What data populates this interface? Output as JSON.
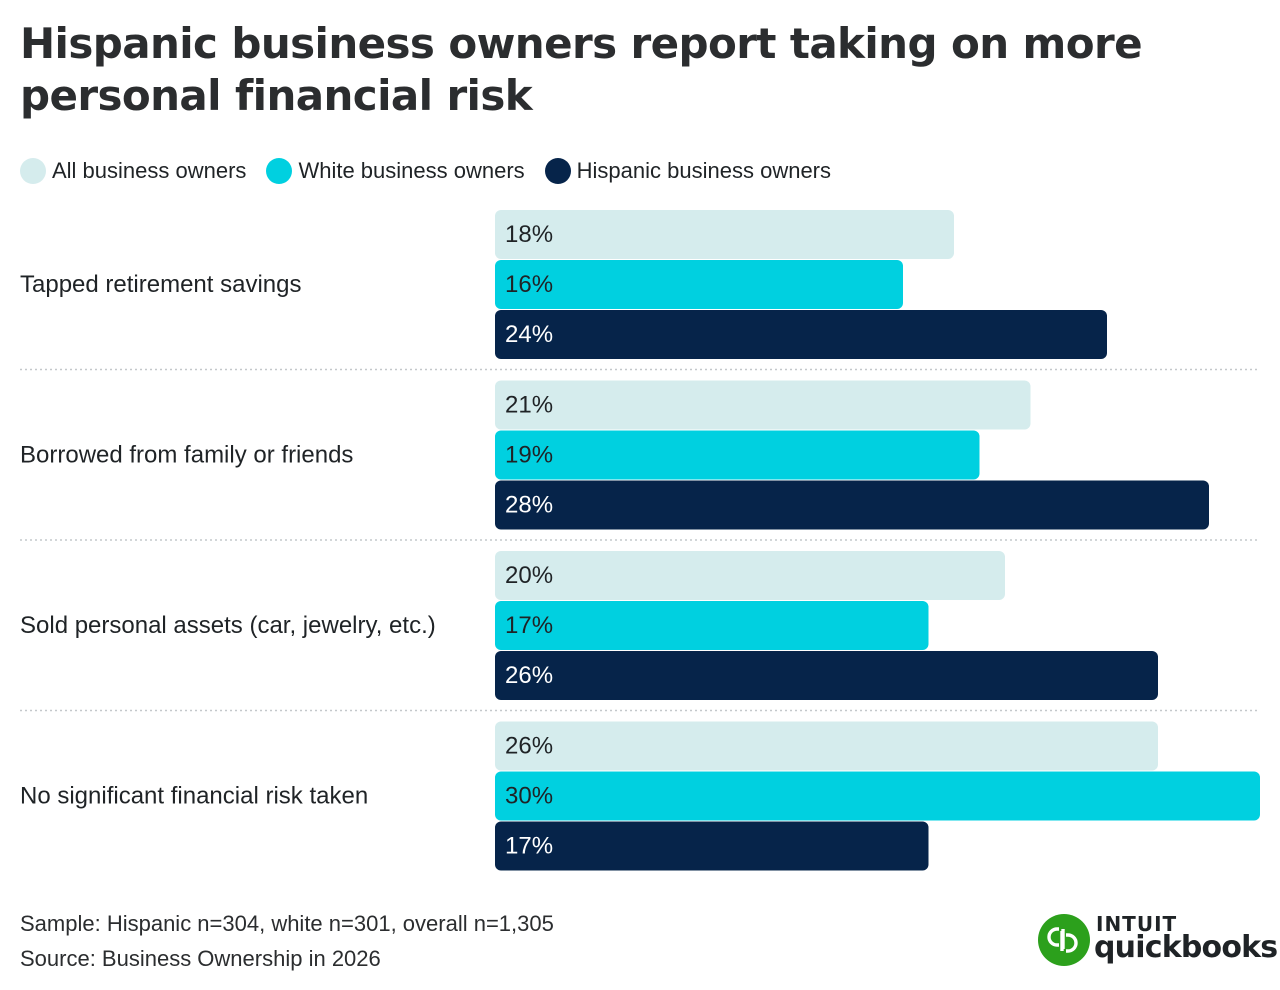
{
  "title": "Hispanic business owners report taking on more personal financial risk",
  "chart_data": {
    "type": "bar",
    "orientation": "horizontal",
    "categories": [
      "Tapped retirement savings",
      "Borrowed from family or friends",
      "Sold personal assets (car, jewelry, etc.)",
      "No significant financial risk taken"
    ],
    "series": [
      {
        "name": "All business owners",
        "values": [
          18,
          21,
          20,
          26
        ],
        "labels": [
          "18%",
          "21%",
          "20%",
          "26%"
        ],
        "color": "#d5eced",
        "label_color": "#1f2326"
      },
      {
        "name": "White business owners",
        "values": [
          16,
          19,
          17,
          30
        ],
        "labels": [
          "16%",
          "19%",
          "17%",
          "30%"
        ],
        "color": "#00d0e0",
        "label_color": "#1f2326"
      },
      {
        "name": "Hispanic business owners",
        "values": [
          24,
          28,
          26,
          17
        ],
        "labels": [
          "24%",
          "28%",
          "26%",
          "17%"
        ],
        "color": "#06244a",
        "label_color": "#ffffff"
      }
    ],
    "unit": "%",
    "xlim": [
      0,
      30
    ],
    "grid": false,
    "legend_position": "top-left"
  },
  "footer": {
    "sample": "Sample: Hispanic n=304, white n=301, overall n=1,305",
    "source": "Source: Business Ownership in 2026"
  },
  "logo": {
    "brand": "INTUIT",
    "product": "quickbooks",
    "colors": {
      "mark": "#2ca01c"
    },
    "icon": "quickbooks-logo-icon"
  }
}
